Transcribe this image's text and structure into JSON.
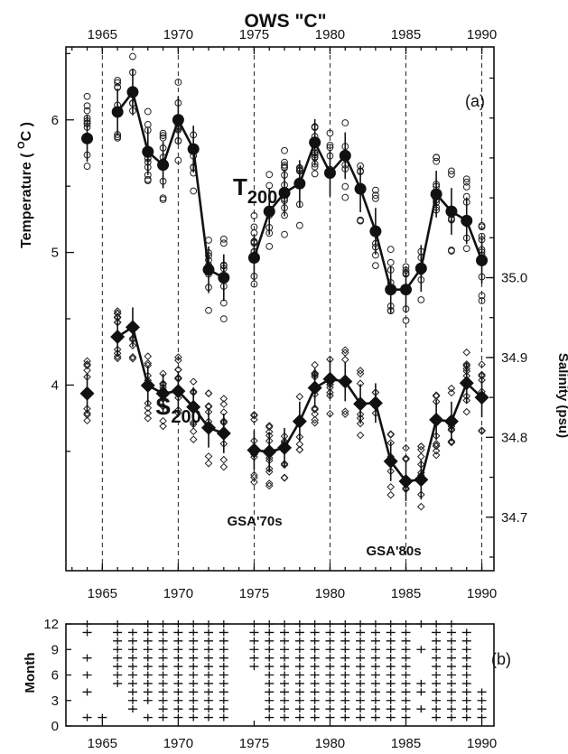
{
  "title": "OWS \"C\"",
  "panel_a_label": "(a)",
  "panel_b_label": "(b)",
  "colors": {
    "ink": "#111111",
    "background": "#ffffff"
  },
  "chart_data": [
    {
      "type": "line",
      "panel": "a",
      "xlim": [
        1962.6,
        1990.8
      ],
      "x_ticks": [
        1965,
        1970,
        1975,
        1980,
        1985,
        1990
      ],
      "x_tick_labels": [
        "1965",
        "1970",
        "1975",
        "1980",
        "1985",
        "1990"
      ],
      "dashed_reference_years": [
        1965,
        1970,
        1975,
        1980,
        1985,
        1990
      ],
      "ylabel_left": "Temperature ( ",
      "ylabel_left_sup": "O",
      "ylabel_left_tail": "C )",
      "ylim_left": [
        2.6,
        6.55
      ],
      "y_ticks_left": [
        4,
        5,
        6
      ],
      "y_tick_labels_left": [
        "4",
        "5",
        "6"
      ],
      "ylabel_right": "Salinity (psu)",
      "ylim_right": [
        34.633,
        35.289
      ],
      "y_ticks_right": [
        34.7,
        34.8,
        34.9,
        35.0
      ],
      "y_tick_labels_right": [
        "34.7",
        "34.8",
        "34.9",
        "35.0"
      ],
      "series": [
        {
          "name_main": "T",
          "name_sub": "200",
          "axis": "left",
          "marker": "circle",
          "x": [
            1964,
            1966,
            1967,
            1968,
            1969,
            1970,
            1971,
            1972,
            1973,
            1975,
            1976,
            1977,
            1978,
            1979,
            1980,
            1981,
            1982,
            1983,
            1984,
            1985,
            1986,
            1987,
            1988,
            1989,
            1990
          ],
          "y": [
            5.86,
            6.06,
            6.21,
            5.76,
            5.66,
            6.0,
            5.78,
            4.87,
            4.81,
            4.96,
            5.31,
            5.45,
            5.52,
            5.83,
            5.6,
            5.73,
            5.48,
            5.16,
            4.72,
            4.72,
            4.88,
            5.44,
            5.31,
            5.24,
            4.94
          ],
          "connect_segments": [
            [
              1966,
              1973
            ],
            [
              1975,
              1990
            ]
          ]
        },
        {
          "name_main": "S",
          "name_sub": "200",
          "axis": "right",
          "marker": "diamond",
          "x": [
            1964,
            1966,
            1967,
            1968,
            1969,
            1970,
            1971,
            1972,
            1973,
            1975,
            1976,
            1977,
            1978,
            1979,
            1980,
            1981,
            1982,
            1983,
            1984,
            1985,
            1986,
            1987,
            1988,
            1989,
            1990
          ],
          "y": [
            34.855,
            34.926,
            34.938,
            34.865,
            34.855,
            34.858,
            34.838,
            34.812,
            34.805,
            34.784,
            34.782,
            34.787,
            34.82,
            34.862,
            34.873,
            34.87,
            34.842,
            34.843,
            34.77,
            34.745,
            34.747,
            34.822,
            34.82,
            34.868,
            34.85
          ],
          "connect_segments": [
            [
              1966,
              1973
            ],
            [
              1975,
              1990
            ]
          ]
        }
      ],
      "annotations": [
        {
          "text": "GSA'70s",
          "x": 1977.2,
          "y_left": 3.08
        },
        {
          "text": "GSA'80s",
          "x": 1985.5,
          "y_left": 2.64
        }
      ]
    },
    {
      "type": "scatter",
      "panel": "b",
      "marker": "plus",
      "ylabel": "Month",
      "xlim": [
        1962.6,
        1990.8
      ],
      "ylim": [
        0,
        12
      ],
      "x_ticks": [
        1965,
        1970,
        1975,
        1980,
        1985,
        1990
      ],
      "x_tick_labels": [
        "1965",
        "1970",
        "1975",
        "1980",
        "1985",
        "1990"
      ],
      "y_ticks": [
        0,
        3,
        6,
        9,
        12
      ],
      "y_tick_labels": [
        "0",
        "3",
        "6",
        "9",
        "12"
      ],
      "monthly_columns": [
        {
          "x": 1964,
          "months": [
            1,
            4,
            6,
            8,
            11,
            12
          ]
        },
        {
          "x": 1965,
          "months": [
            1
          ]
        },
        {
          "x": 1966,
          "months": [
            5,
            6,
            7,
            8,
            9,
            10,
            11,
            12
          ]
        },
        {
          "x": 1967,
          "months": [
            2,
            3,
            4,
            5,
            6,
            7,
            8,
            9,
            10,
            11
          ]
        },
        {
          "x": 1968,
          "months": [
            1,
            3,
            4,
            5,
            6,
            7,
            8,
            9,
            10,
            11,
            12
          ]
        },
        {
          "x": 1969,
          "months": [
            1,
            2,
            3,
            4,
            5,
            6,
            7,
            8,
            9,
            10,
            11,
            12
          ]
        },
        {
          "x": 1970,
          "months": [
            1,
            2,
            3,
            4,
            5,
            6,
            7,
            8,
            9,
            10,
            11,
            12
          ]
        },
        {
          "x": 1971,
          "months": [
            1,
            2,
            3,
            4,
            5,
            6,
            7,
            8,
            9,
            10,
            11,
            12
          ]
        },
        {
          "x": 1972,
          "months": [
            1,
            2,
            3,
            4,
            5,
            6,
            7,
            8,
            9,
            10,
            11,
            12
          ]
        },
        {
          "x": 1973,
          "months": [
            1,
            2,
            3,
            4,
            5,
            6,
            7,
            8,
            9,
            10,
            11,
            12
          ]
        },
        {
          "x": 1975,
          "months": [
            7,
            8,
            9,
            10,
            11,
            12
          ]
        },
        {
          "x": 1976,
          "months": [
            1,
            2,
            3,
            4,
            5,
            6,
            7,
            8,
            9,
            10,
            11,
            12
          ]
        },
        {
          "x": 1977,
          "months": [
            1,
            2,
            3,
            4,
            5,
            6,
            7,
            8,
            9,
            10,
            11,
            12
          ]
        },
        {
          "x": 1978,
          "months": [
            1,
            2,
            3,
            4,
            5,
            6,
            7,
            8,
            9,
            10,
            11,
            12
          ]
        },
        {
          "x": 1979,
          "months": [
            1,
            2,
            3,
            4,
            5,
            6,
            7,
            8,
            9,
            10,
            11,
            12
          ]
        },
        {
          "x": 1980,
          "months": [
            1,
            2,
            3,
            4,
            5,
            6,
            7,
            8,
            9,
            10,
            11,
            12
          ]
        },
        {
          "x": 1981,
          "months": [
            1,
            2,
            3,
            4,
            5,
            6,
            7,
            8,
            9,
            10,
            11,
            12
          ]
        },
        {
          "x": 1982,
          "months": [
            1,
            2,
            3,
            4,
            5,
            6,
            7,
            8,
            9,
            10,
            11,
            12
          ]
        },
        {
          "x": 1983,
          "months": [
            1,
            2,
            3,
            4,
            5,
            6,
            7,
            8,
            9,
            10,
            11,
            12
          ]
        },
        {
          "x": 1984,
          "months": [
            1,
            2,
            3,
            4,
            5,
            6,
            7,
            8,
            9,
            10,
            11,
            12
          ]
        },
        {
          "x": 1985,
          "months": [
            1,
            2,
            3,
            4,
            5,
            6,
            7,
            8,
            9,
            10,
            11,
            12
          ]
        },
        {
          "x": 1986,
          "months": [
            2,
            4,
            5,
            9,
            12
          ]
        },
        {
          "x": 1987,
          "months": [
            1,
            2,
            3,
            4,
            5,
            6,
            7,
            8,
            9,
            10,
            11,
            12
          ]
        },
        {
          "x": 1988,
          "months": [
            1,
            2,
            3,
            4,
            5,
            6,
            7,
            8,
            9,
            10,
            11,
            12
          ]
        },
        {
          "x": 1989,
          "months": [
            1,
            2,
            3,
            4,
            5,
            6,
            7,
            8,
            9,
            10,
            11
          ]
        },
        {
          "x": 1990,
          "months": [
            1,
            2,
            3,
            4
          ]
        }
      ]
    }
  ]
}
